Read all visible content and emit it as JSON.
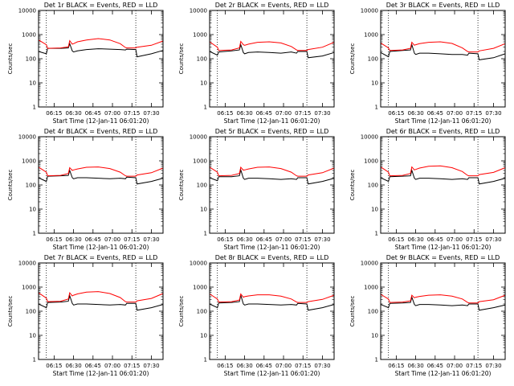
{
  "colors": {
    "events": "#000000",
    "lld": "#ff0000",
    "background": "#ffffff"
  },
  "chart_data": [
    {
      "type": "line",
      "title": "Det 1r BLACK = Events, RED = LLD",
      "xlabel": "Start Time (12-Jan-11 06:01:20)",
      "ylabel": "Counts/sec",
      "yscale": "log",
      "ylim": [
        1,
        10000
      ],
      "xlim": [
        "06:03",
        "07:39"
      ],
      "xticks": [
        "06:15",
        "06:30",
        "06:45",
        "07:00",
        "07:15",
        "07:30"
      ],
      "yticks": [
        "1",
        "10",
        "100",
        "1000",
        "10000"
      ],
      "vlines": [
        "06:09",
        "07:18"
      ],
      "grid": false,
      "x": [
        "06:03",
        "06:09",
        "06:10",
        "06:20",
        "06:26",
        "06:27",
        "06:29",
        "06:30",
        "06:33",
        "06:40",
        "06:49",
        "06:58",
        "07:06",
        "07:10",
        "07:11",
        "07:18",
        "07:19",
        "07:30",
        "07:39"
      ],
      "series": [
        {
          "name": "Events",
          "values": [
            200,
            160,
            270,
            270,
            280,
            420,
            210,
            190,
            210,
            240,
            260,
            250,
            240,
            230,
            250,
            240,
            120,
            160,
            220
          ]
        },
        {
          "name": "LLD",
          "values": [
            600,
            380,
            270,
            280,
            310,
            560,
            400,
            420,
            500,
            600,
            680,
            600,
            420,
            290,
            280,
            280,
            300,
            360,
            540
          ]
        }
      ]
    },
    {
      "type": "line",
      "title": "Det 2r BLACK = Events, RED = LLD",
      "xlabel": "Start Time (12-Jan-11 06:01:20)",
      "ylabel": "Counts/sec",
      "yscale": "log",
      "ylim": [
        1,
        10000
      ],
      "xlim": [
        "06:03",
        "07:39"
      ],
      "xticks": [
        "06:15",
        "06:30",
        "06:45",
        "07:00",
        "07:15",
        "07:30"
      ],
      "yticks": [
        "1",
        "10",
        "100",
        "1000",
        "10000"
      ],
      "vlines": [
        "06:09",
        "07:18"
      ],
      "grid": false,
      "x": [
        "06:03",
        "06:09",
        "06:10",
        "06:20",
        "06:26",
        "06:27",
        "06:29",
        "06:30",
        "06:33",
        "06:40",
        "06:49",
        "06:58",
        "07:06",
        "07:10",
        "07:11",
        "07:18",
        "07:19",
        "07:30",
        "07:39"
      ],
      "series": [
        {
          "name": "Events",
          "values": [
            200,
            140,
            190,
            210,
            230,
            380,
            180,
            160,
            180,
            190,
            180,
            170,
            190,
            170,
            200,
            200,
            110,
            130,
            180
          ]
        },
        {
          "name": "LLD",
          "values": [
            500,
            300,
            220,
            230,
            280,
            520,
            380,
            360,
            400,
            480,
            500,
            450,
            320,
            230,
            220,
            220,
            240,
            300,
            480
          ]
        }
      ]
    },
    {
      "type": "line",
      "title": "Det 3r BLACK = Events, RED = LLD",
      "xlabel": "Start Time (12-Jan-11 06:01:20)",
      "ylabel": "Counts/sec",
      "yscale": "log",
      "ylim": [
        1,
        10000
      ],
      "xlim": [
        "06:03",
        "07:39"
      ],
      "xticks": [
        "06:15",
        "06:30",
        "06:45",
        "07:00",
        "07:15",
        "07:30"
      ],
      "yticks": [
        "1",
        "10",
        "100",
        "1000",
        "10000"
      ],
      "vlines": [
        "06:09",
        "07:18"
      ],
      "grid": false,
      "x": [
        "06:03",
        "06:09",
        "06:10",
        "06:20",
        "06:26",
        "06:27",
        "06:29",
        "06:30",
        "06:33",
        "06:40",
        "06:49",
        "06:58",
        "07:06",
        "07:10",
        "07:11",
        "07:18",
        "07:19",
        "07:30",
        "07:39"
      ],
      "series": [
        {
          "name": "Events",
          "values": [
            180,
            120,
            200,
            220,
            230,
            380,
            170,
            150,
            170,
            170,
            160,
            150,
            150,
            140,
            170,
            160,
            90,
            110,
            160
          ]
        },
        {
          "name": "LLD",
          "values": [
            450,
            280,
            220,
            230,
            270,
            480,
            360,
            380,
            420,
            480,
            500,
            430,
            280,
            200,
            190,
            190,
            210,
            270,
            420
          ]
        }
      ]
    },
    {
      "type": "line",
      "title": "Det 4r BLACK = Events, RED = LLD",
      "xlabel": "Start Time (12-Jan-11 06:01:20)",
      "ylabel": "Counts/sec",
      "yscale": "log",
      "ylim": [
        1,
        10000
      ],
      "xlim": [
        "06:03",
        "07:39"
      ],
      "xticks": [
        "06:15",
        "06:30",
        "06:45",
        "07:00",
        "07:15",
        "07:30"
      ],
      "yticks": [
        "1",
        "10",
        "100",
        "1000",
        "10000"
      ],
      "vlines": [
        "06:09",
        "07:18"
      ],
      "grid": false,
      "x": [
        "06:03",
        "06:09",
        "06:10",
        "06:20",
        "06:26",
        "06:27",
        "06:29",
        "06:30",
        "06:33",
        "06:40",
        "06:49",
        "06:58",
        "07:06",
        "07:10",
        "07:11",
        "07:18",
        "07:19",
        "07:30",
        "07:39"
      ],
      "series": [
        {
          "name": "Events",
          "values": [
            200,
            140,
            230,
            240,
            250,
            400,
            200,
            180,
            200,
            200,
            190,
            180,
            190,
            180,
            210,
            200,
            110,
            140,
            190
          ]
        },
        {
          "name": "LLD",
          "values": [
            550,
            340,
            240,
            250,
            300,
            520,
            400,
            420,
            460,
            540,
            560,
            480,
            340,
            240,
            230,
            230,
            260,
            320,
            500
          ]
        }
      ]
    },
    {
      "type": "line",
      "title": "Det 5r BLACK = Events, RED = LLD",
      "xlabel": "Start Time (12-Jan-11 06:01:20)",
      "ylabel": "Counts/sec",
      "yscale": "log",
      "ylim": [
        1,
        10000
      ],
      "xlim": [
        "06:03",
        "07:39"
      ],
      "xticks": [
        "06:15",
        "06:30",
        "06:45",
        "07:00",
        "07:15",
        "07:30"
      ],
      "yticks": [
        "1",
        "10",
        "100",
        "1000",
        "10000"
      ],
      "vlines": [
        "06:09",
        "07:18"
      ],
      "grid": false,
      "x": [
        "06:03",
        "06:09",
        "06:10",
        "06:20",
        "06:26",
        "06:27",
        "06:29",
        "06:30",
        "06:33",
        "06:40",
        "06:49",
        "06:58",
        "07:06",
        "07:10",
        "07:11",
        "07:18",
        "07:19",
        "07:30",
        "07:39"
      ],
      "series": [
        {
          "name": "Events",
          "values": [
            200,
            150,
            220,
            220,
            240,
            420,
            190,
            170,
            190,
            190,
            180,
            170,
            180,
            170,
            200,
            200,
            110,
            140,
            190
          ]
        },
        {
          "name": "LLD",
          "values": [
            550,
            340,
            240,
            250,
            300,
            540,
            410,
            420,
            460,
            540,
            560,
            480,
            340,
            240,
            230,
            230,
            260,
            320,
            500
          ]
        }
      ]
    },
    {
      "type": "line",
      "title": "Det 6r BLACK = Events, RED = LLD",
      "xlabel": "Start Time (12-Jan-11 06:01:20)",
      "ylabel": "Counts/sec",
      "yscale": "log",
      "ylim": [
        1,
        10000
      ],
      "xlim": [
        "06:03",
        "07:39"
      ],
      "xticks": [
        "06:15",
        "06:30",
        "06:45",
        "07:00",
        "07:15",
        "07:30"
      ],
      "yticks": [
        "1",
        "10",
        "100",
        "1000",
        "10000"
      ],
      "vlines": [
        "06:09",
        "07:18"
      ],
      "grid": false,
      "x": [
        "06:03",
        "06:09",
        "06:10",
        "06:20",
        "06:26",
        "06:27",
        "06:29",
        "06:30",
        "06:33",
        "06:40",
        "06:49",
        "06:58",
        "07:06",
        "07:10",
        "07:11",
        "07:18",
        "07:19",
        "07:30",
        "07:39"
      ],
      "series": [
        {
          "name": "Events",
          "values": [
            200,
            140,
            220,
            230,
            240,
            400,
            190,
            170,
            190,
            190,
            180,
            170,
            180,
            170,
            200,
            200,
            110,
            140,
            190
          ]
        },
        {
          "name": "LLD",
          "values": [
            560,
            340,
            240,
            250,
            300,
            560,
            420,
            440,
            500,
            600,
            620,
            520,
            360,
            250,
            240,
            240,
            270,
            330,
            520
          ]
        }
      ]
    },
    {
      "type": "line",
      "title": "Det 7r BLACK = Events, RED = LLD",
      "xlabel": "Start Time (12-Jan-11 06:01:20)",
      "ylabel": "Counts/sec",
      "yscale": "log",
      "ylim": [
        1,
        10000
      ],
      "xlim": [
        "06:03",
        "07:39"
      ],
      "xticks": [
        "06:15",
        "06:30",
        "06:45",
        "07:00",
        "07:15",
        "07:30"
      ],
      "yticks": [
        "1",
        "10",
        "100",
        "1000",
        "10000"
      ],
      "vlines": [
        "06:09",
        "07:18"
      ],
      "grid": false,
      "x": [
        "06:03",
        "06:09",
        "06:10",
        "06:20",
        "06:26",
        "06:27",
        "06:29",
        "06:30",
        "06:33",
        "06:40",
        "06:49",
        "06:58",
        "07:06",
        "07:10",
        "07:11",
        "07:18",
        "07:19",
        "07:30",
        "07:39"
      ],
      "series": [
        {
          "name": "Events",
          "values": [
            200,
            140,
            230,
            240,
            260,
            440,
            210,
            180,
            200,
            200,
            190,
            180,
            190,
            180,
            210,
            210,
            110,
            140,
            190
          ]
        },
        {
          "name": "LLD",
          "values": [
            580,
            350,
            250,
            260,
            320,
            580,
            430,
            460,
            520,
            620,
            650,
            540,
            370,
            250,
            240,
            240,
            270,
            340,
            540
          ]
        }
      ]
    },
    {
      "type": "line",
      "title": "Det 8r BLACK = Events, RED = LLD",
      "xlabel": "Start Time (12-Jan-11 06:01:20)",
      "ylabel": "Counts/sec",
      "yscale": "log",
      "ylim": [
        1,
        10000
      ],
      "xlim": [
        "06:03",
        "07:39"
      ],
      "xticks": [
        "06:15",
        "06:30",
        "06:45",
        "07:00",
        "07:15",
        "07:30"
      ],
      "yticks": [
        "1",
        "10",
        "100",
        "1000",
        "10000"
      ],
      "vlines": [
        "06:09",
        "07:18"
      ],
      "grid": false,
      "x": [
        "06:03",
        "06:09",
        "06:10",
        "06:20",
        "06:26",
        "06:27",
        "06:29",
        "06:30",
        "06:33",
        "06:40",
        "06:49",
        "06:58",
        "07:06",
        "07:10",
        "07:11",
        "07:18",
        "07:19",
        "07:30",
        "07:39"
      ],
      "series": [
        {
          "name": "Events",
          "values": [
            200,
            140,
            220,
            230,
            250,
            460,
            200,
            180,
            200,
            200,
            190,
            180,
            190,
            180,
            210,
            200,
            110,
            140,
            190
          ]
        },
        {
          "name": "LLD",
          "values": [
            520,
            320,
            240,
            250,
            290,
            520,
            380,
            400,
            430,
            480,
            480,
            420,
            320,
            240,
            230,
            230,
            250,
            310,
            460
          ]
        }
      ]
    },
    {
      "type": "line",
      "title": "Det 9r BLACK = Events, RED = LLD",
      "xlabel": "Start Time (12-Jan-11 06:01:20)",
      "ylabel": "Counts/sec",
      "yscale": "log",
      "ylim": [
        1,
        10000
      ],
      "xlim": [
        "06:03",
        "07:39"
      ],
      "xticks": [
        "06:15",
        "06:30",
        "06:45",
        "07:00",
        "07:15",
        "07:30"
      ],
      "yticks": [
        "1",
        "10",
        "100",
        "1000",
        "10000"
      ],
      "vlines": [
        "06:09",
        "07:18"
      ],
      "grid": false,
      "x": [
        "06:03",
        "06:09",
        "06:10",
        "06:20",
        "06:26",
        "06:27",
        "06:29",
        "06:30",
        "06:33",
        "06:40",
        "06:49",
        "06:58",
        "07:06",
        "07:10",
        "07:11",
        "07:18",
        "07:19",
        "07:30",
        "07:39"
      ],
      "series": [
        {
          "name": "Events",
          "values": [
            190,
            140,
            210,
            220,
            230,
            380,
            190,
            170,
            190,
            190,
            180,
            170,
            180,
            170,
            200,
            200,
            110,
            140,
            180
          ]
        },
        {
          "name": "LLD",
          "values": [
            500,
            320,
            230,
            240,
            270,
            460,
            360,
            380,
            410,
            460,
            480,
            420,
            320,
            230,
            220,
            220,
            250,
            300,
            460
          ]
        }
      ]
    }
  ]
}
